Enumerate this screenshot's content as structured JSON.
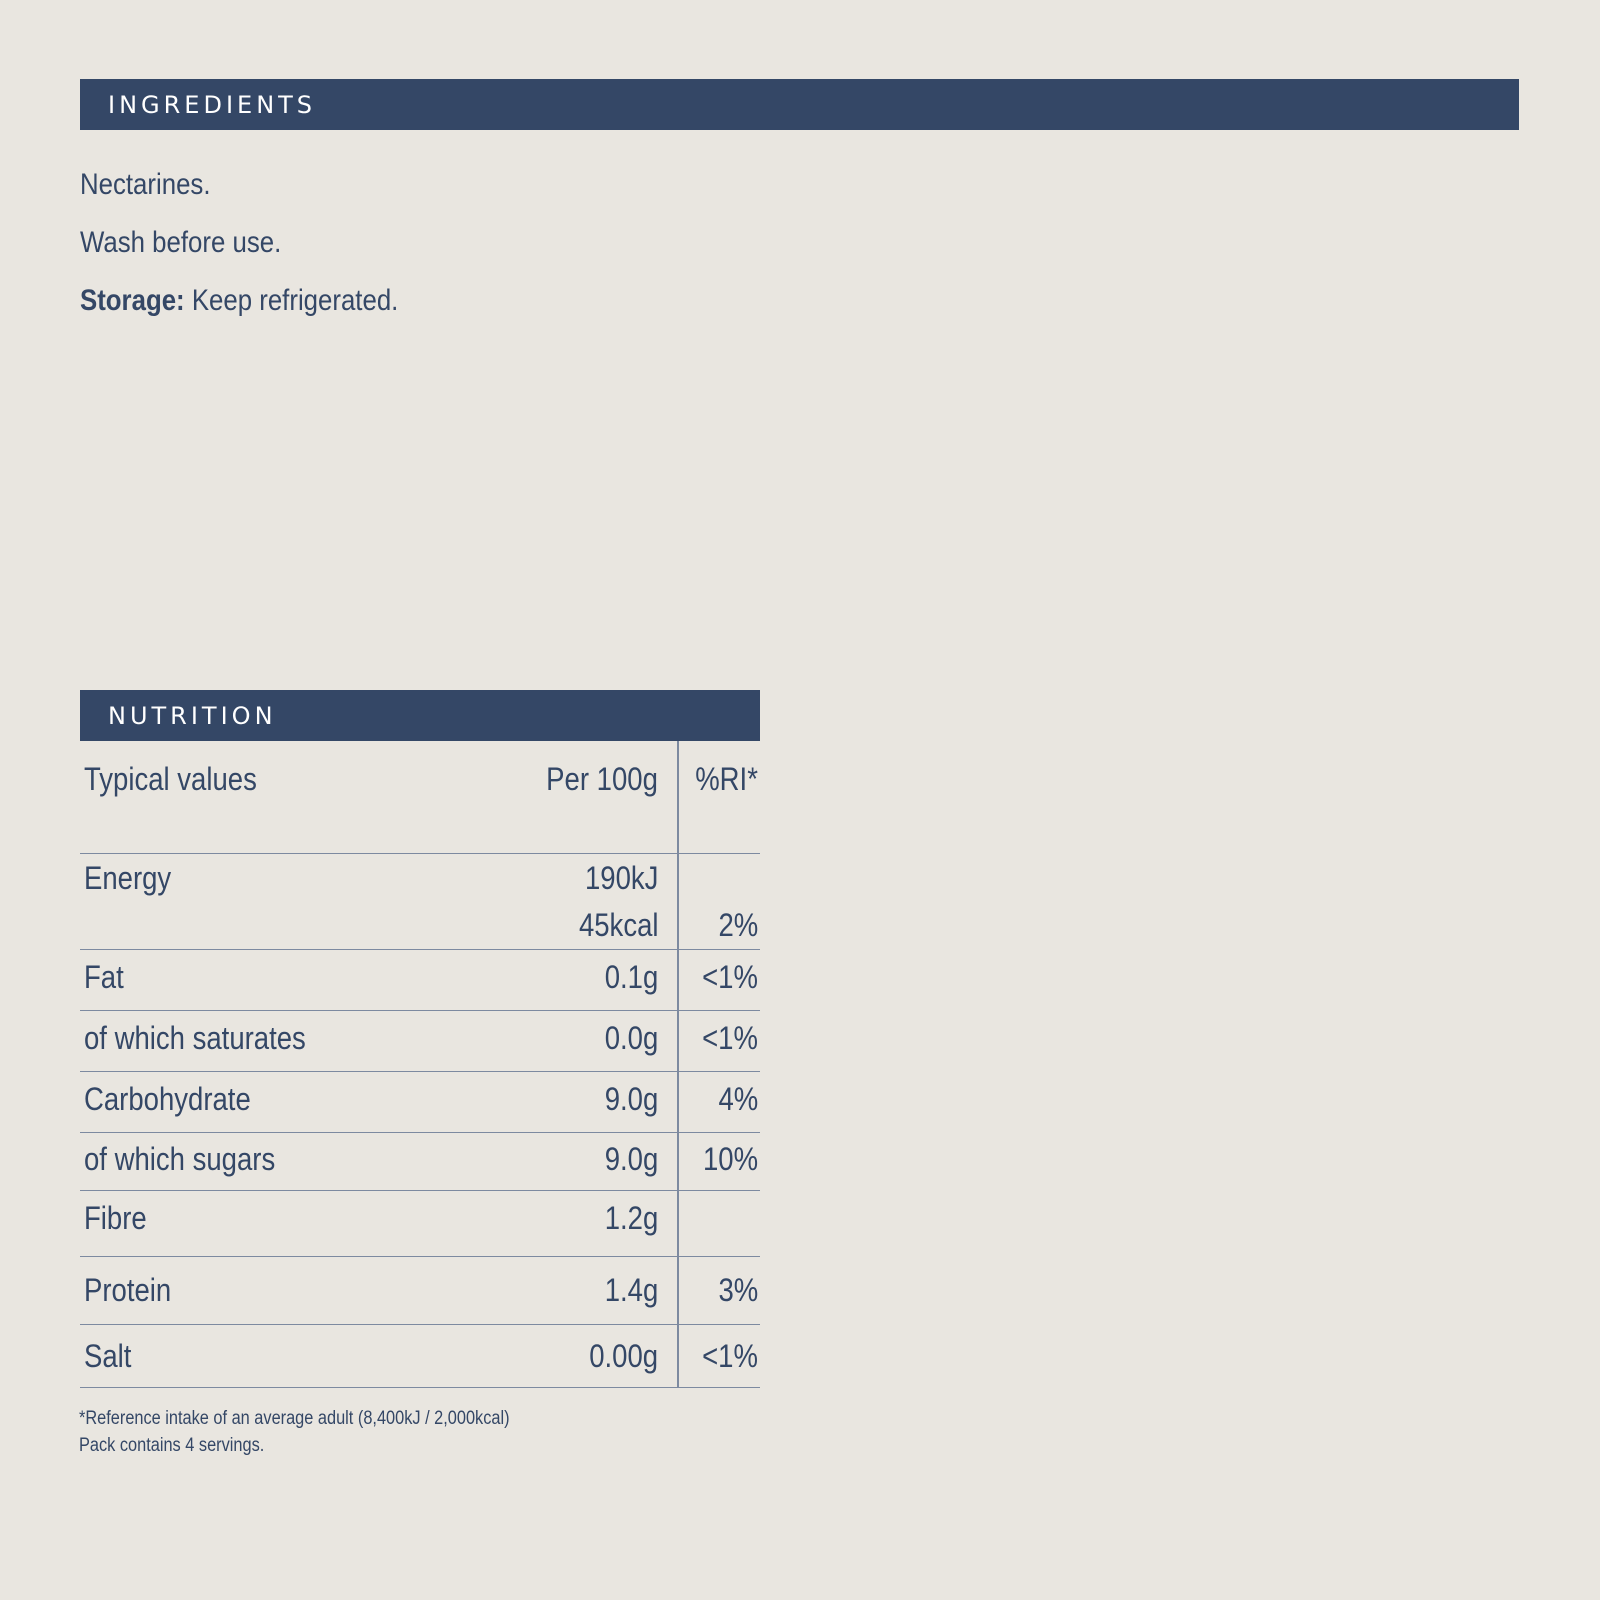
{
  "ingredients": {
    "header": "INGREDIENTS",
    "line1": "Nectarines.",
    "line2": "Wash before use.",
    "storage_label": "Storage:",
    "storage_text": " Keep refrigerated."
  },
  "nutrition": {
    "header": "NUTRITION",
    "columns": {
      "label": "Typical values",
      "per100g": "Per 100g",
      "ri": "%RI*"
    },
    "rows": [
      {
        "label": "Energy",
        "per100g_kj": "190kJ",
        "per100g_kcal": "45kcal",
        "ri": "2%"
      },
      {
        "label": "Fat",
        "per100g": "0.1g",
        "ri": "<1%"
      },
      {
        "label": "of which saturates",
        "per100g": "0.0g",
        "ri": "<1%"
      },
      {
        "label": "Carbohydrate",
        "per100g": "9.0g",
        "ri": "4%"
      },
      {
        "label": "of which sugars",
        "per100g": "9.0g",
        "ri": "10%"
      },
      {
        "label": "Fibre",
        "per100g": "1.2g",
        "ri": ""
      },
      {
        "label": "Protein",
        "per100g": "1.4g",
        "ri": "3%"
      },
      {
        "label": "Salt",
        "per100g": "0.00g",
        "ri": "<1%"
      }
    ],
    "footnote1": "*Reference intake of an average adult (8,400kJ / 2,000kcal)",
    "footnote2": "Pack contains 4 servings."
  },
  "colors": {
    "background": "#e9e6e0",
    "navy": "#344766",
    "rule": "#7d8aa0"
  }
}
